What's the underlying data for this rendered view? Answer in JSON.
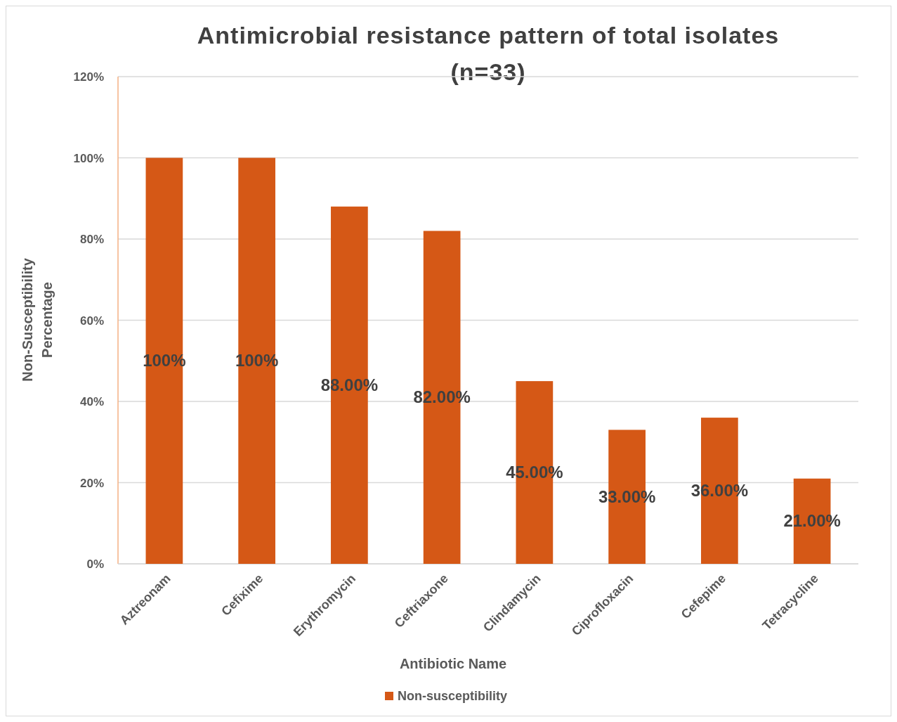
{
  "chart_data": {
    "type": "bar",
    "title": "Antimicrobial resistance pattern of total isolates (n=33)",
    "xlabel": "Antibiotic Name",
    "ylabel": "Non-Susceptibility Percentage",
    "categories": [
      "Aztreonam",
      "Cefixime",
      "Erythromycin",
      "Ceftriaxone",
      "Clindamycin",
      "Ciprofloxacin",
      "Cefepime",
      "Tetracycline"
    ],
    "series": [
      {
        "name": "Non-susceptibility",
        "color": "#d55816",
        "values": [
          100,
          100,
          88,
          82,
          45,
          33,
          36,
          21
        ],
        "value_labels": [
          "100%",
          "100%",
          "88.00%",
          "82.00%",
          "45.00%",
          "33.00%",
          "36.00%",
          "21.00%"
        ]
      }
    ],
    "ylim": [
      0,
      120
    ],
    "yticks": [
      {
        "value": 0,
        "label": "0%"
      },
      {
        "value": 20,
        "label": "20%"
      },
      {
        "value": 40,
        "label": "40%"
      },
      {
        "value": 60,
        "label": "60%"
      },
      {
        "value": 80,
        "label": "80%"
      },
      {
        "value": 100,
        "label": "100%"
      },
      {
        "value": 120,
        "label": "120%"
      }
    ],
    "grid": "y",
    "legend": "bottom"
  }
}
